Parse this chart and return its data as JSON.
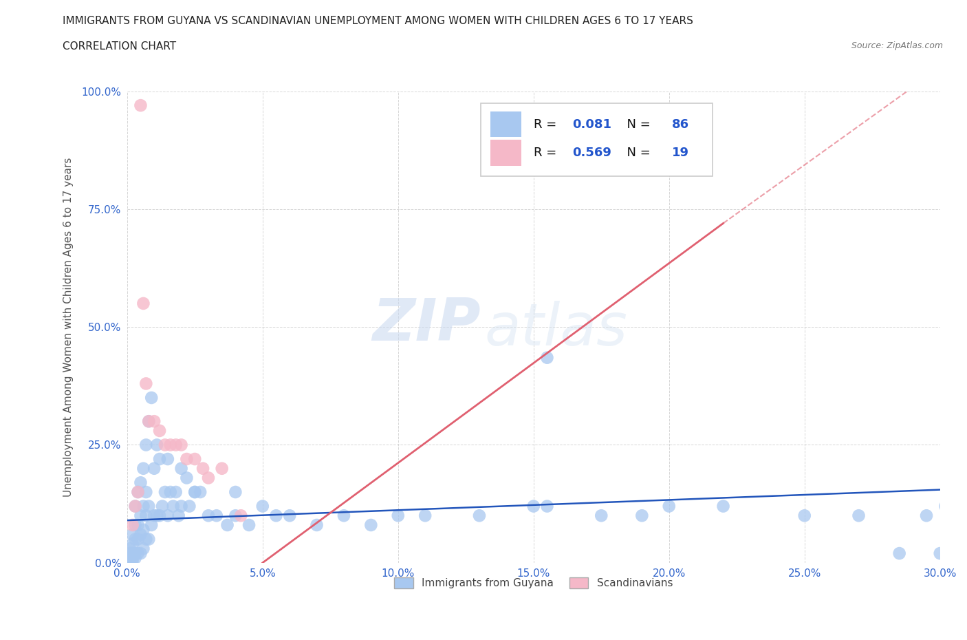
{
  "title": "IMMIGRANTS FROM GUYANA VS SCANDINAVIAN UNEMPLOYMENT AMONG WOMEN WITH CHILDREN AGES 6 TO 17 YEARS",
  "subtitle": "CORRELATION CHART",
  "source": "Source: ZipAtlas.com",
  "ylabel": "Unemployment Among Women with Children Ages 6 to 17 years",
  "xlim": [
    0.0,
    0.3
  ],
  "ylim": [
    0.0,
    1.0
  ],
  "xticks": [
    0.0,
    0.05,
    0.1,
    0.15,
    0.2,
    0.25,
    0.3
  ],
  "xticklabels": [
    "0.0%",
    "5.0%",
    "10.0%",
    "15.0%",
    "20.0%",
    "25.0%",
    "30.0%"
  ],
  "yticks": [
    0.0,
    0.25,
    0.5,
    0.75,
    1.0
  ],
  "yticklabels": [
    "0.0%",
    "25.0%",
    "50.0%",
    "75.0%",
    "100.0%"
  ],
  "guyana_R": 0.081,
  "guyana_N": 86,
  "scand_R": 0.569,
  "scand_N": 19,
  "guyana_color": "#a8c8f0",
  "scand_color": "#f5b8c8",
  "guyana_line_color": "#2255bb",
  "scand_line_color": "#e06070",
  "watermark_zip": "ZIP",
  "watermark_atlas": "atlas",
  "background_color": "#ffffff",
  "guyana_points_x": [
    0.001,
    0.001,
    0.001,
    0.001,
    0.002,
    0.002,
    0.002,
    0.002,
    0.002,
    0.003,
    0.003,
    0.003,
    0.003,
    0.003,
    0.004,
    0.004,
    0.004,
    0.004,
    0.005,
    0.005,
    0.005,
    0.005,
    0.006,
    0.006,
    0.006,
    0.006,
    0.007,
    0.007,
    0.007,
    0.007,
    0.008,
    0.008,
    0.008,
    0.009,
    0.009,
    0.01,
    0.01,
    0.011,
    0.011,
    0.012,
    0.012,
    0.013,
    0.014,
    0.015,
    0.015,
    0.016,
    0.017,
    0.018,
    0.019,
    0.02,
    0.02,
    0.022,
    0.023,
    0.025,
    0.027,
    0.03,
    0.033,
    0.037,
    0.04,
    0.045,
    0.05,
    0.055,
    0.06,
    0.07,
    0.08,
    0.09,
    0.1,
    0.11,
    0.13,
    0.15,
    0.155,
    0.175,
    0.19,
    0.2,
    0.22,
    0.25,
    0.27,
    0.285,
    0.295,
    0.3,
    0.302,
    0.304,
    0.025,
    0.04,
    0.155,
    0.305
  ],
  "guyana_points_y": [
    0.005,
    0.01,
    0.02,
    0.03,
    0.005,
    0.01,
    0.02,
    0.04,
    0.06,
    0.01,
    0.02,
    0.05,
    0.08,
    0.12,
    0.02,
    0.05,
    0.08,
    0.15,
    0.02,
    0.06,
    0.1,
    0.17,
    0.03,
    0.07,
    0.12,
    0.2,
    0.05,
    0.1,
    0.15,
    0.25,
    0.05,
    0.12,
    0.3,
    0.08,
    0.35,
    0.1,
    0.2,
    0.1,
    0.25,
    0.1,
    0.22,
    0.12,
    0.15,
    0.1,
    0.22,
    0.15,
    0.12,
    0.15,
    0.1,
    0.12,
    0.2,
    0.18,
    0.12,
    0.15,
    0.15,
    0.1,
    0.1,
    0.08,
    0.1,
    0.08,
    0.12,
    0.1,
    0.1,
    0.08,
    0.1,
    0.08,
    0.1,
    0.1,
    0.1,
    0.12,
    0.12,
    0.1,
    0.1,
    0.12,
    0.12,
    0.1,
    0.1,
    0.02,
    0.1,
    0.02,
    0.12,
    0.1,
    0.15,
    0.15,
    0.435,
    0.02
  ],
  "scand_points_x": [
    0.002,
    0.003,
    0.004,
    0.005,
    0.006,
    0.007,
    0.008,
    0.01,
    0.012,
    0.014,
    0.016,
    0.018,
    0.02,
    0.022,
    0.025,
    0.028,
    0.03,
    0.035,
    0.042
  ],
  "scand_points_y": [
    0.08,
    0.12,
    0.15,
    0.97,
    0.55,
    0.38,
    0.3,
    0.3,
    0.28,
    0.25,
    0.25,
    0.25,
    0.25,
    0.22,
    0.22,
    0.2,
    0.18,
    0.2,
    0.1
  ],
  "guyana_reg": [
    0.0,
    0.09,
    0.3,
    0.155
  ],
  "scand_reg_solid": [
    0.05,
    0.0,
    0.22,
    0.72
  ],
  "scand_reg_dashed": [
    0.22,
    0.72,
    0.3,
    1.05
  ]
}
